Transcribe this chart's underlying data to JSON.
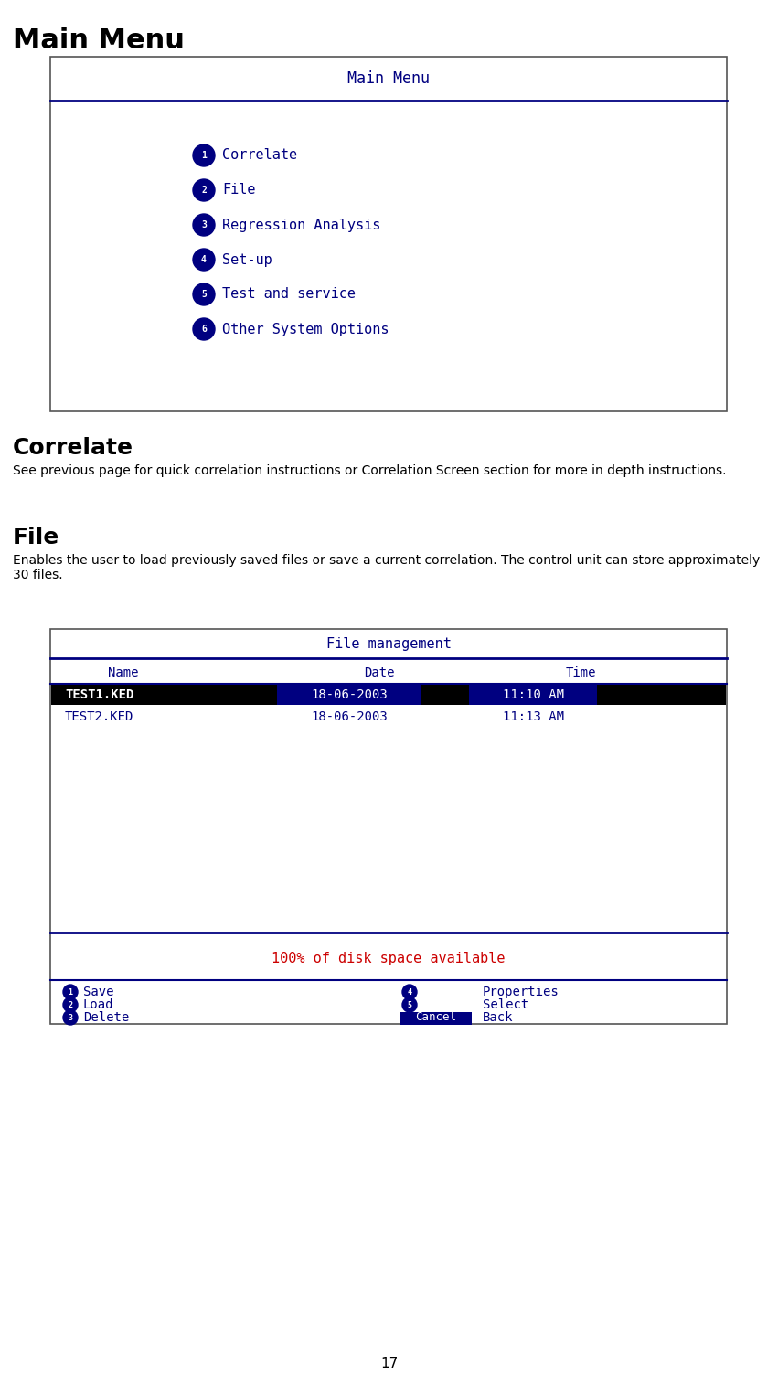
{
  "page_title": "Main Menu",
  "section1_title": "Correlate",
  "section1_text": "See previous page for quick correlation instructions or Correlation Screen section for more in depth instructions.",
  "section2_title": "File",
  "section2_text": "Enables the user to load previously saved files or save a current correlation. The control unit can store approximately 30 files.",
  "page_number": "17",
  "screen_blue": "#000080",
  "screen_bg": "#ffffff",
  "menu_items": [
    {
      "num": "1",
      "label": "Correlate"
    },
    {
      "num": "2",
      "label": "File"
    },
    {
      "num": "3",
      "label": "Regression Analysis"
    },
    {
      "num": "4",
      "label": "Set-up"
    },
    {
      "num": "5",
      "label": "Test and service"
    },
    {
      "num": "6",
      "label": "Other System Options"
    }
  ],
  "file_mgmt_title": "File management",
  "file_header": [
    "Name",
    "Date",
    "Time"
  ],
  "file_row1": [
    "TEST1.KED",
    "18-06-2003",
    "11:10 AM"
  ],
  "file_row2": [
    "TEST2.KED",
    "18-06-2003",
    "11:13 AM"
  ],
  "disk_space_text": "100% of disk space available",
  "disk_space_color": "#cc0000",
  "bottom_left": [
    {
      "num": "1",
      "label": "Save"
    },
    {
      "num": "2",
      "label": "Load"
    },
    {
      "num": "3",
      "label": "Delete"
    }
  ],
  "bottom_right": [
    {
      "num": "4",
      "cancel": "",
      "label": "Properties"
    },
    {
      "num": "5",
      "cancel": "",
      "label": "Select"
    },
    {
      "num": "",
      "cancel": "Cancel",
      "label": "Back"
    }
  ]
}
